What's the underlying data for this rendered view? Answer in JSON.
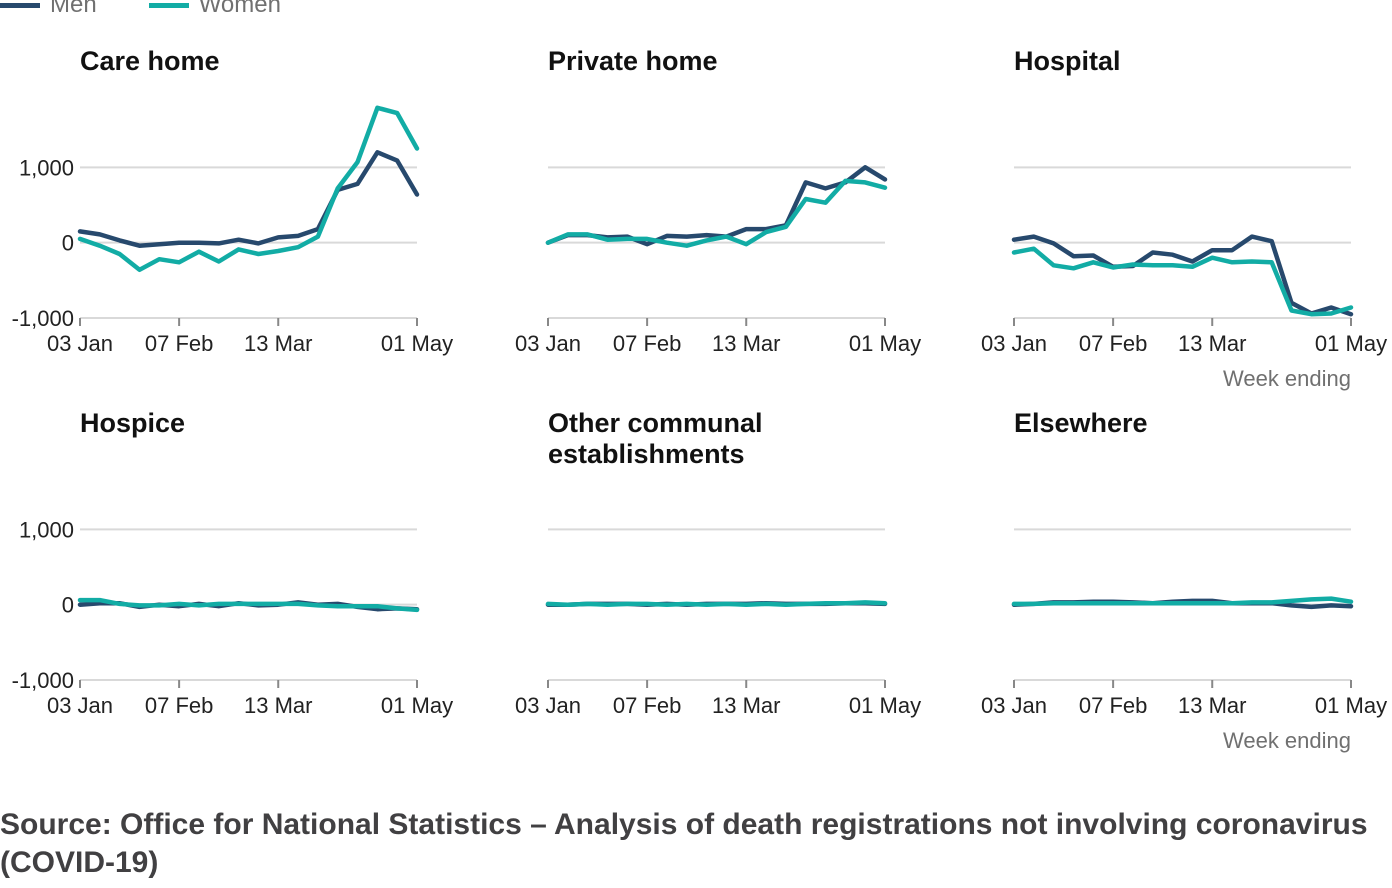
{
  "legend": [
    {
      "name": "Men",
      "color": "#206095"
    },
    {
      "name": "Women",
      "color": "#1ba39c"
    }
  ],
  "colors": {
    "men": "#27496d",
    "women": "#12aca5",
    "grid": "#d9d9d9",
    "axis": "#888888"
  },
  "x_label": "Week ending",
  "source": "Source: Office for National Statistics – Analysis of death registrations not involving coronavirus (COVID-19)",
  "chart_data": [
    {
      "type": "line",
      "title": "Care home",
      "x_ticks": [
        "03 Jan",
        "07 Feb",
        "13 Mar",
        "01 May"
      ],
      "ylim": [
        -1000,
        2000
      ],
      "y_ticks": [
        "1,000",
        "0",
        "-1,000"
      ],
      "series": [
        {
          "name": "Men",
          "values": [
            150,
            110,
            30,
            -40,
            -20,
            0,
            0,
            -10,
            40,
            -10,
            70,
            90,
            180,
            700,
            780,
            1200,
            1090,
            640
          ]
        },
        {
          "name": "Women",
          "values": [
            50,
            -40,
            -150,
            -360,
            -220,
            -260,
            -120,
            -250,
            -90,
            -150,
            -110,
            -60,
            80,
            720,
            1070,
            1790,
            1720,
            1250
          ]
        }
      ]
    },
    {
      "type": "line",
      "title": "Private home",
      "x_ticks": [
        "03 Jan",
        "07 Feb",
        "13 Mar",
        "01 May"
      ],
      "ylim": [
        -1000,
        2000
      ],
      "y_ticks": [],
      "series": [
        {
          "name": "Men",
          "values": [
            0,
            100,
            100,
            70,
            80,
            -20,
            90,
            80,
            100,
            80,
            180,
            180,
            230,
            800,
            720,
            800,
            1000,
            840
          ]
        },
        {
          "name": "Women",
          "values": [
            0,
            110,
            110,
            40,
            50,
            50,
            0,
            -40,
            30,
            80,
            -20,
            140,
            210,
            580,
            530,
            820,
            800,
            730
          ]
        }
      ]
    },
    {
      "type": "line",
      "title": "Hospital",
      "x_ticks": [
        "03 Jan",
        "07 Feb",
        "13 Mar",
        "01 May"
      ],
      "ylim": [
        -1000,
        2000
      ],
      "y_ticks": [],
      "series": [
        {
          "name": "Men",
          "values": [
            40,
            80,
            -10,
            -180,
            -170,
            -320,
            -310,
            -130,
            -160,
            -250,
            -100,
            -100,
            80,
            20,
            -800,
            -940,
            -860,
            -950
          ]
        },
        {
          "name": "Women",
          "values": [
            -130,
            -80,
            -300,
            -340,
            -260,
            -330,
            -290,
            -300,
            -300,
            -320,
            -200,
            -260,
            -250,
            -260,
            -900,
            -950,
            -940,
            -860
          ]
        }
      ]
    },
    {
      "type": "line",
      "title": "Hospice",
      "x_ticks": [
        "03 Jan",
        "07 Feb",
        "13 Mar",
        "01 May"
      ],
      "ylim": [
        -1000,
        2000
      ],
      "y_ticks": [
        "1,000",
        "0",
        "-1,000"
      ],
      "series": [
        {
          "name": "Men",
          "values": [
            0,
            20,
            20,
            -30,
            0,
            -20,
            10,
            -20,
            20,
            -10,
            0,
            30,
            0,
            10,
            -30,
            -60,
            -50,
            -60
          ]
        },
        {
          "name": "Women",
          "values": [
            60,
            60,
            10,
            -10,
            -10,
            10,
            -10,
            10,
            10,
            10,
            10,
            10,
            -10,
            -20,
            -20,
            -20,
            -50,
            -70
          ]
        }
      ]
    },
    {
      "type": "line",
      "title": "Other communal establishments",
      "x_ticks": [
        "03 Jan",
        "07 Feb",
        "13 Mar",
        "01 May"
      ],
      "ylim": [
        -1000,
        2000
      ],
      "y_ticks": [],
      "series": [
        {
          "name": "Men",
          "values": [
            0,
            0,
            10,
            10,
            10,
            0,
            10,
            0,
            10,
            10,
            10,
            20,
            10,
            10,
            10,
            20,
            20,
            10
          ]
        },
        {
          "name": "Women",
          "values": [
            10,
            0,
            10,
            0,
            10,
            10,
            0,
            10,
            0,
            10,
            0,
            10,
            0,
            10,
            20,
            20,
            30,
            20
          ]
        }
      ]
    },
    {
      "type": "line",
      "title": "Elsewhere",
      "x_ticks": [
        "03 Jan",
        "07 Feb",
        "13 Mar",
        "01 May"
      ],
      "ylim": [
        -1000,
        2000
      ],
      "y_ticks": [],
      "series": [
        {
          "name": "Men",
          "values": [
            0,
            10,
            30,
            30,
            40,
            40,
            30,
            20,
            40,
            50,
            50,
            20,
            20,
            20,
            -10,
            -30,
            -10,
            -20
          ]
        },
        {
          "name": "Women",
          "values": [
            10,
            10,
            20,
            20,
            20,
            20,
            20,
            20,
            20,
            20,
            20,
            20,
            30,
            30,
            50,
            70,
            80,
            40
          ]
        }
      ]
    }
  ]
}
